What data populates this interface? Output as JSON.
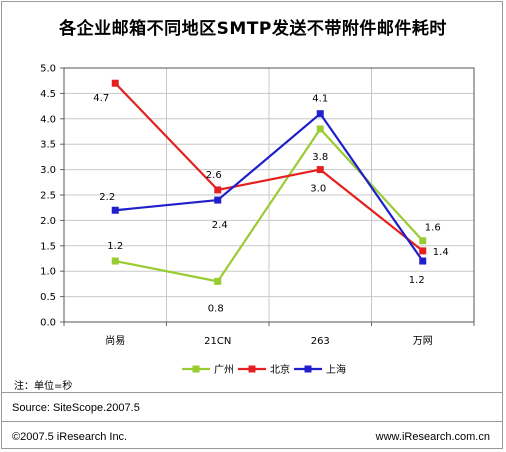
{
  "chart_data": {
    "type": "line",
    "title": "各企业邮箱不同地区SMTP发送不带附件邮件耗时",
    "categories": [
      "尚易",
      "21CN",
      "263",
      "万网"
    ],
    "ylim": [
      0,
      5
    ],
    "yticks": [
      "0.0",
      "0.5",
      "1.0",
      "1.5",
      "2.0",
      "2.5",
      "3.0",
      "3.5",
      "4.0",
      "4.5",
      "5.0"
    ],
    "grid": true,
    "legend_position": "bottom",
    "series": [
      {
        "name": "广州",
        "color": "#99cc33",
        "values": [
          1.2,
          0.8,
          3.8,
          1.6
        ],
        "labels": [
          "1.2",
          "0.8",
          "3.8",
          "1.6"
        ]
      },
      {
        "name": "北京",
        "color": "#e52020",
        "values": [
          4.7,
          2.6,
          3.0,
          1.4
        ],
        "labels": [
          "4.7",
          "2.6",
          "3.0",
          "1.4"
        ]
      },
      {
        "name": "上海",
        "color": "#1f1fcc",
        "values": [
          2.2,
          2.4,
          4.1,
          1.2
        ],
        "labels": [
          "2.2",
          "2.4",
          "4.1",
          "1.2"
        ]
      }
    ]
  },
  "note": "注：单位=秒",
  "source": "Source:  SiteScope.2007.5",
  "copyright": "©2007.5  iResearch Inc.",
  "website": "www.iResearch.com.cn"
}
